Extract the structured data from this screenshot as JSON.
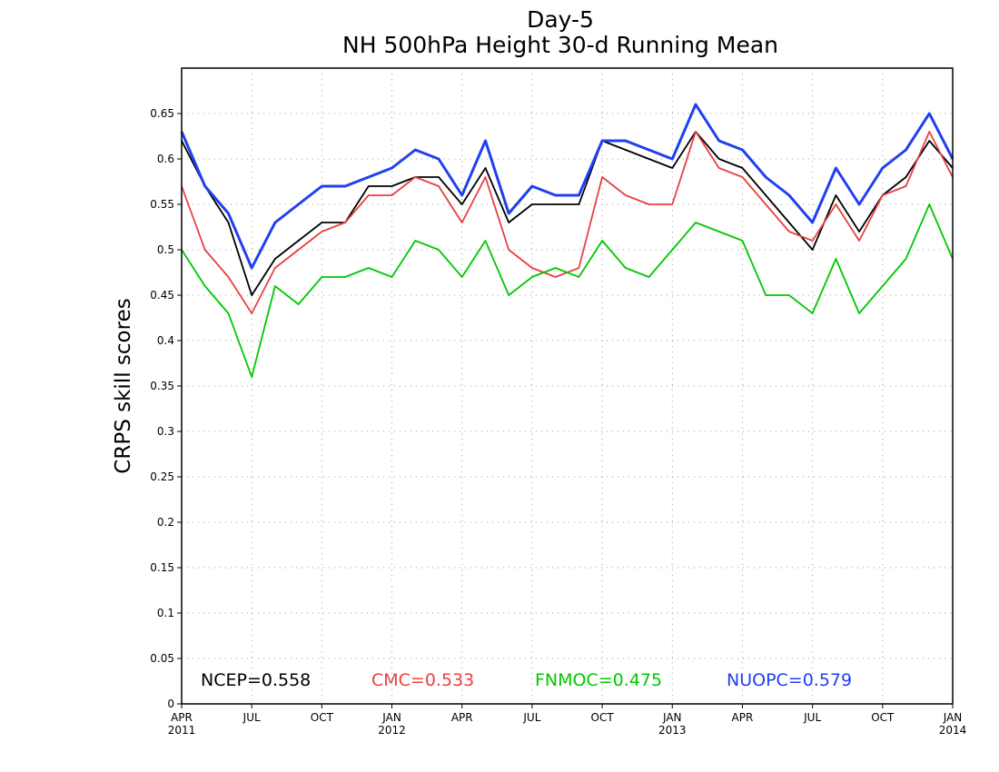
{
  "chart_data": {
    "type": "line",
    "title": "Day-5",
    "subtitle": "NH 500hPa Height 30-d Running Mean",
    "xlabel": "",
    "ylabel": "CRPS skill scores",
    "ylim": [
      0,
      0.7
    ],
    "xlim": [
      "2011-04-01",
      "2014-01-01"
    ],
    "grid": true,
    "y_ticks": [
      "0",
      "0.05",
      "0.1",
      "0.15",
      "0.2",
      "0.25",
      "0.3",
      "0.35",
      "0.4",
      "0.45",
      "0.5",
      "0.55",
      "0.6",
      "0.65"
    ],
    "x_ticks": [
      {
        "label": "APR",
        "year": "2011"
      },
      {
        "label": "JUL",
        "year": ""
      },
      {
        "label": "OCT",
        "year": ""
      },
      {
        "label": "JAN",
        "year": "2012"
      },
      {
        "label": "APR",
        "year": ""
      },
      {
        "label": "JUL",
        "year": ""
      },
      {
        "label": "OCT",
        "year": ""
      },
      {
        "label": "JAN",
        "year": "2013"
      },
      {
        "label": "APR",
        "year": ""
      },
      {
        "label": "JUL",
        "year": ""
      },
      {
        "label": "OCT",
        "year": ""
      },
      {
        "label": "JAN",
        "year": "2014"
      }
    ],
    "x": [
      "2011-04",
      "2011-05",
      "2011-06",
      "2011-07",
      "2011-08",
      "2011-09",
      "2011-10",
      "2011-11",
      "2011-12",
      "2012-01",
      "2012-02",
      "2012-03",
      "2012-04",
      "2012-05",
      "2012-06",
      "2012-07",
      "2012-08",
      "2012-09",
      "2012-10",
      "2012-11",
      "2012-12",
      "2013-01",
      "2013-02",
      "2013-03",
      "2013-04",
      "2013-05",
      "2013-06",
      "2013-07",
      "2013-08",
      "2013-09",
      "2013-10",
      "2013-11",
      "2013-12",
      "2014-01"
    ],
    "series": [
      {
        "color": "#000000",
        "values": [
          0.62,
          0.57,
          0.53,
          0.45,
          0.49,
          0.51,
          0.53,
          0.53,
          0.57,
          0.57,
          0.58,
          0.58,
          0.55,
          0.59,
          0.53,
          0.55,
          0.55,
          0.55,
          0.62,
          0.61,
          0.6,
          0.59,
          0.63,
          0.6,
          0.59,
          0.56,
          0.53,
          0.5,
          0.56,
          0.52,
          0.56,
          0.58,
          0.62,
          0.59
        ]
      },
      {
        "color": "#e84040",
        "values": [
          0.57,
          0.5,
          0.47,
          0.43,
          0.48,
          0.5,
          0.52,
          0.53,
          0.56,
          0.56,
          0.58,
          0.57,
          0.53,
          0.58,
          0.5,
          0.48,
          0.47,
          0.48,
          0.58,
          0.56,
          0.55,
          0.55,
          0.63,
          0.59,
          0.58,
          0.55,
          0.52,
          0.51,
          0.55,
          0.51,
          0.56,
          0.57,
          0.63,
          0.58
        ]
      },
      {
        "color": "#00c800",
        "values": [
          0.5,
          0.46,
          0.43,
          0.36,
          0.46,
          0.44,
          0.47,
          0.47,
          0.48,
          0.47,
          0.51,
          0.5,
          0.47,
          0.51,
          0.45,
          0.47,
          0.48,
          0.47,
          0.51,
          0.48,
          0.47,
          0.5,
          0.53,
          0.52,
          0.51,
          0.45,
          0.45,
          0.43,
          0.49,
          0.43,
          0.46,
          0.49,
          0.55,
          0.49
        ]
      },
      {
        "color": "#2040f0",
        "values": [
          0.63,
          0.57,
          0.54,
          0.48,
          0.53,
          0.55,
          0.57,
          0.57,
          0.58,
          0.59,
          0.61,
          0.6,
          0.56,
          0.62,
          0.54,
          0.57,
          0.56,
          0.56,
          0.62,
          0.62,
          0.61,
          0.6,
          0.66,
          0.62,
          0.61,
          0.58,
          0.56,
          0.53,
          0.59,
          0.55,
          0.59,
          0.61,
          0.65,
          0.6
        ]
      }
    ],
    "legend": [
      {
        "text": "NCEP=0.558",
        "color": "#000000"
      },
      {
        "text": "CMC=0.533",
        "color": "#e84040"
      },
      {
        "text": "FNMOC=0.475",
        "color": "#00c800"
      },
      {
        "text": "NUOPC=0.579",
        "color": "#2040f0"
      }
    ]
  }
}
